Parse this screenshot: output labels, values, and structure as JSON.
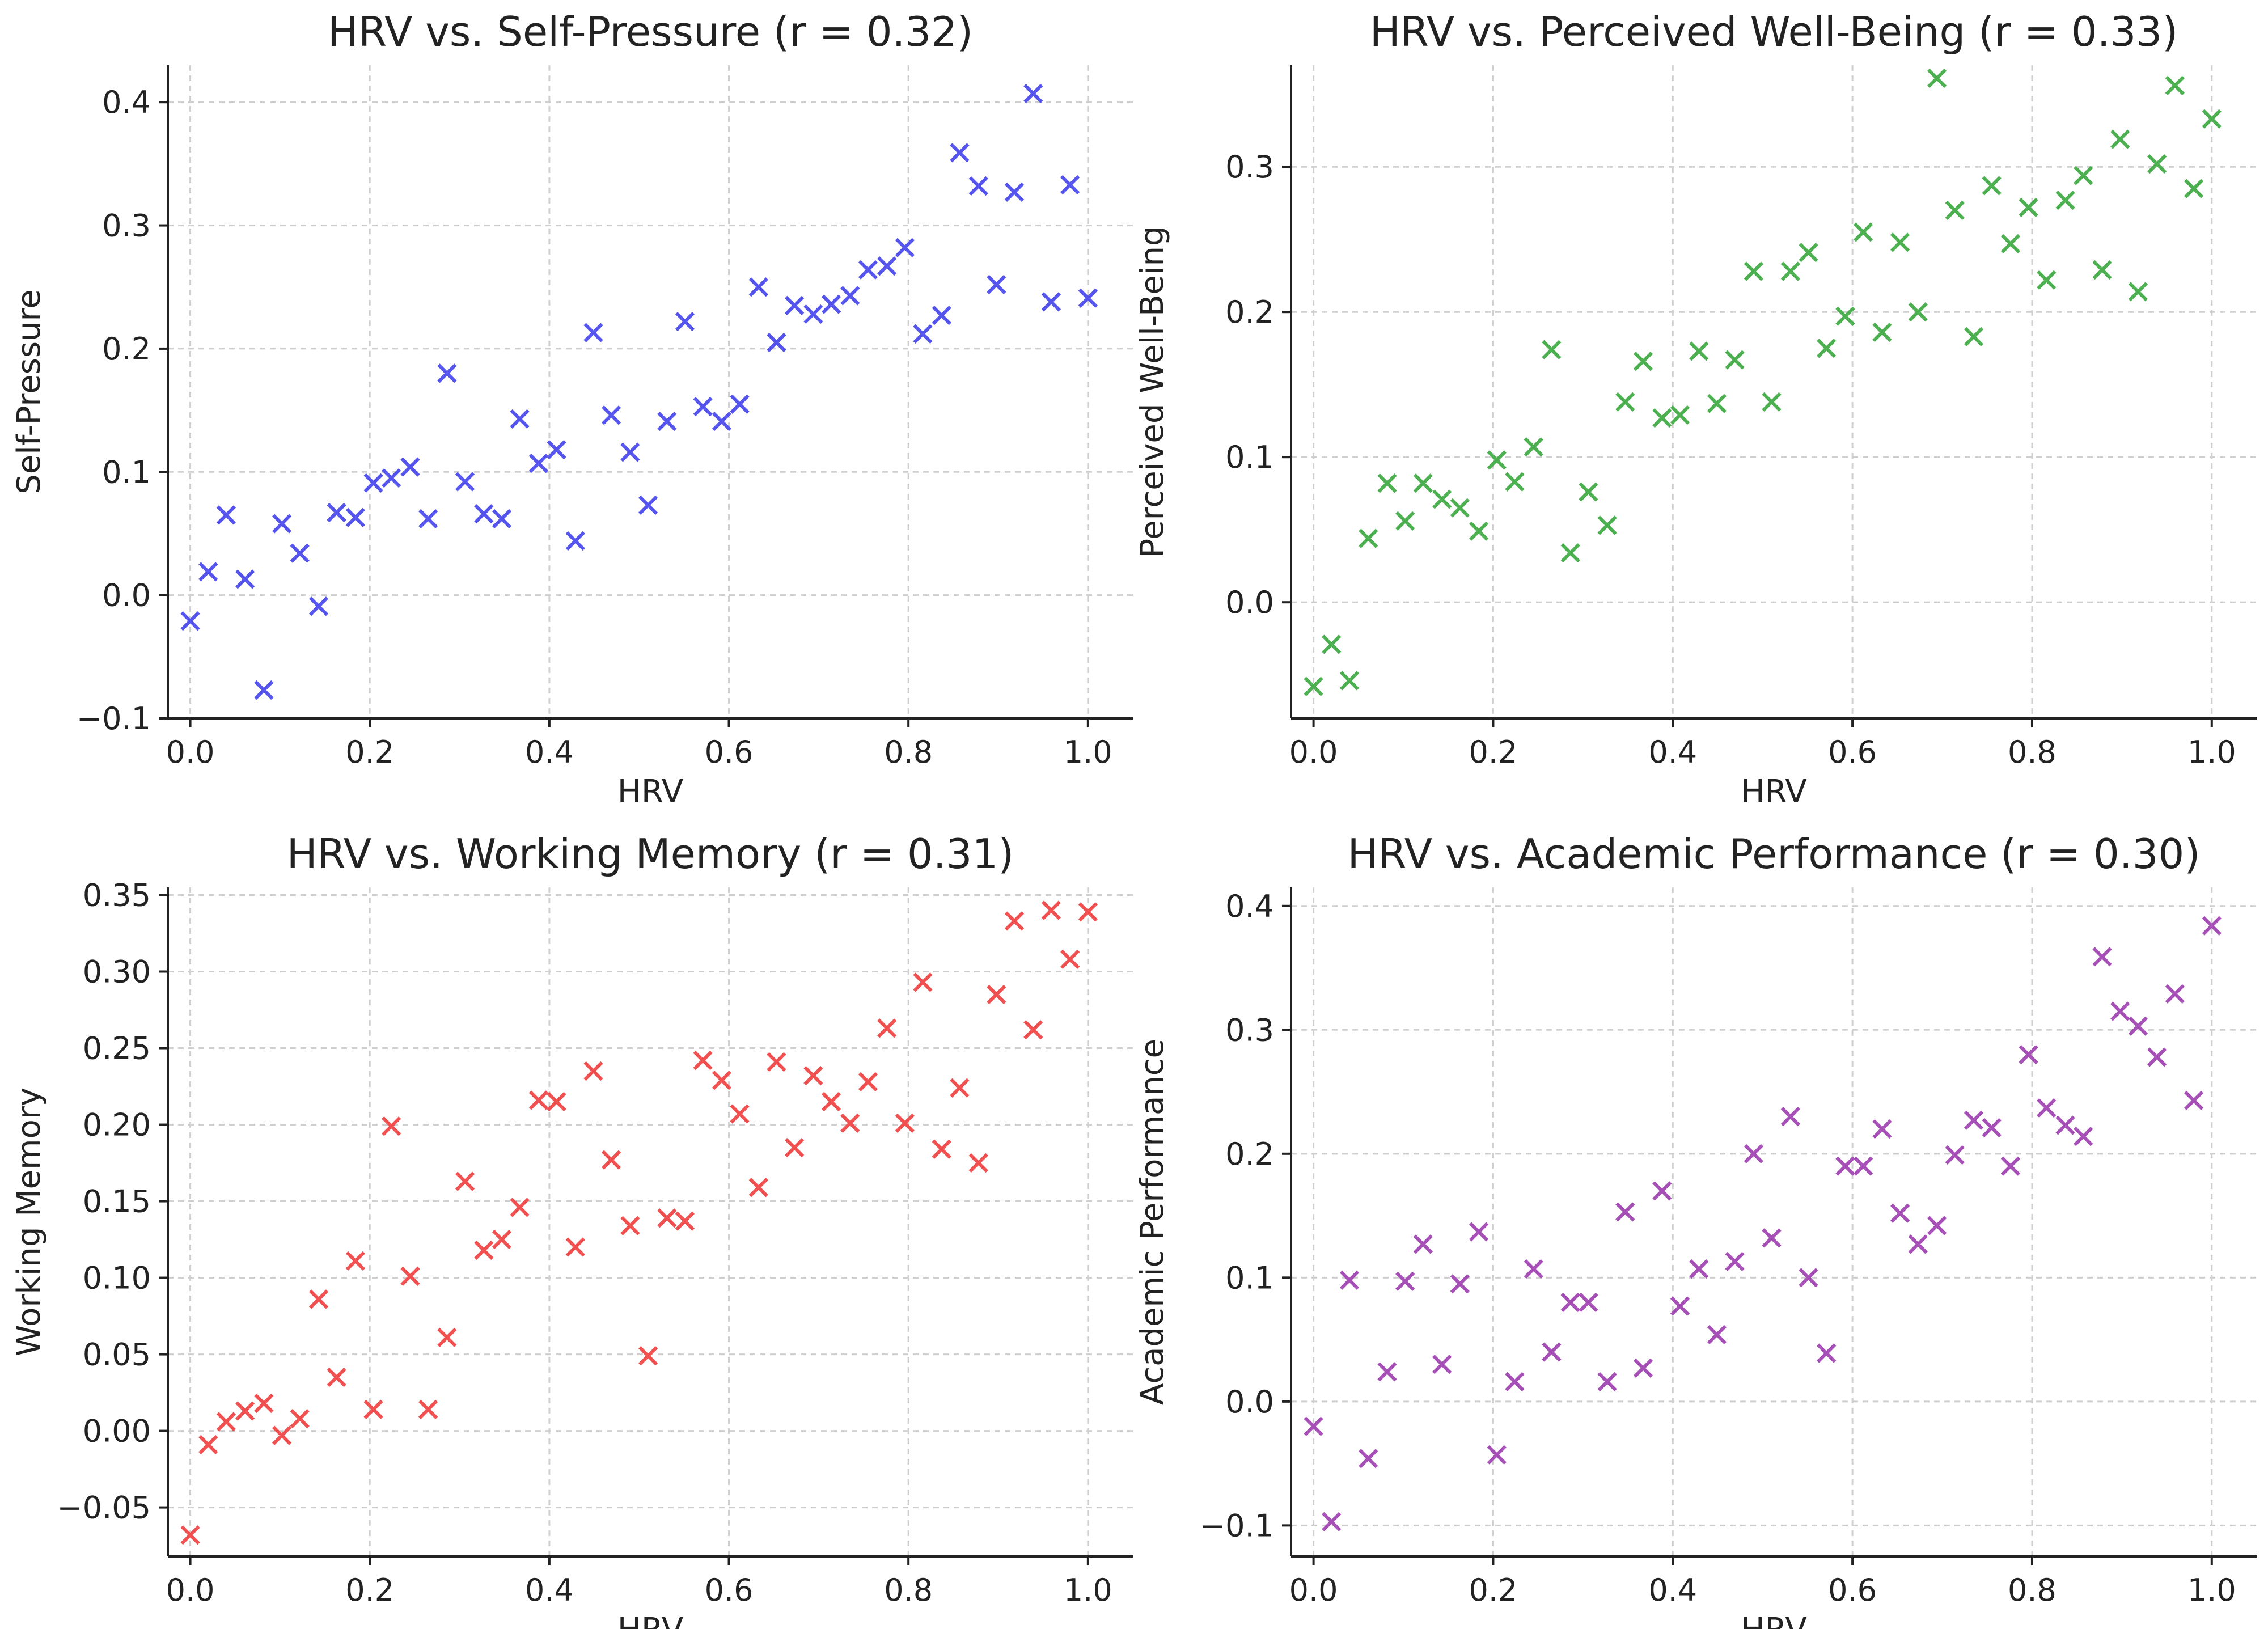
{
  "chart_data": [
    {
      "type": "scatter",
      "title": "HRV vs. Self-Pressure (r = 0.32)",
      "xlabel": "HRV",
      "ylabel": "Self-Pressure",
      "xlim": [
        -0.025,
        1.05
      ],
      "ylim": [
        -0.1,
        0.43
      ],
      "xticks": [
        0.0,
        0.2,
        0.4,
        0.6,
        0.8,
        1.0
      ],
      "xtick_labels": [
        "0.0",
        "0.2",
        "0.4",
        "0.6",
        "0.8",
        "1.0"
      ],
      "yticks": [
        -0.1,
        0.0,
        0.1,
        0.2,
        0.3,
        0.4
      ],
      "ytick_labels": [
        "−0.1",
        "0.0",
        "0.1",
        "0.2",
        "0.3",
        "0.4"
      ],
      "grid": true,
      "marker": "x",
      "color": "#5555ee",
      "x": [
        0.0,
        0.02,
        0.04,
        0.061,
        0.082,
        0.102,
        0.122,
        0.143,
        0.163,
        0.184,
        0.204,
        0.224,
        0.245,
        0.265,
        0.286,
        0.306,
        0.327,
        0.347,
        0.367,
        0.388,
        0.408,
        0.429,
        0.449,
        0.469,
        0.49,
        0.51,
        0.531,
        0.551,
        0.571,
        0.592,
        0.612,
        0.633,
        0.653,
        0.673,
        0.694,
        0.714,
        0.735,
        0.755,
        0.776,
        0.796,
        0.816,
        0.837,
        0.857,
        0.878,
        0.898,
        0.918,
        0.939,
        0.959,
        0.98,
        1.0
      ],
      "y": [
        -0.021,
        0.019,
        0.065,
        0.013,
        -0.077,
        0.058,
        0.034,
        -0.009,
        0.067,
        0.063,
        0.091,
        0.095,
        0.104,
        0.062,
        0.18,
        0.092,
        0.066,
        0.062,
        0.143,
        0.107,
        0.118,
        0.044,
        0.213,
        0.146,
        0.116,
        0.073,
        0.141,
        0.222,
        0.153,
        0.141,
        0.155,
        0.25,
        0.205,
        0.235,
        0.228,
        0.236,
        0.243,
        0.264,
        0.267,
        0.282,
        0.212,
        0.227,
        0.359,
        0.332,
        0.252,
        0.327,
        0.407,
        0.238,
        0.333,
        0.241
      ]
    },
    {
      "type": "scatter",
      "title": "HRV vs. Perceived Well-Being (r = 0.33)",
      "xlabel": "HRV",
      "ylabel": "Perceived Well-Being",
      "xlim": [
        -0.025,
        1.05
      ],
      "ylim": [
        -0.08,
        0.37
      ],
      "xticks": [
        0.0,
        0.2,
        0.4,
        0.6,
        0.8,
        1.0
      ],
      "xtick_labels": [
        "0.0",
        "0.2",
        "0.4",
        "0.6",
        "0.8",
        "1.0"
      ],
      "yticks": [
        0.0,
        0.1,
        0.2,
        0.3
      ],
      "ytick_labels": [
        "0.0",
        "0.1",
        "0.2",
        "0.3"
      ],
      "grid": true,
      "marker": "x",
      "color": "#4caf50",
      "x": [
        0.0,
        0.02,
        0.04,
        0.061,
        0.082,
        0.102,
        0.122,
        0.143,
        0.163,
        0.184,
        0.204,
        0.224,
        0.245,
        0.265,
        0.286,
        0.306,
        0.327,
        0.347,
        0.367,
        0.388,
        0.408,
        0.429,
        0.449,
        0.469,
        0.49,
        0.51,
        0.531,
        0.551,
        0.571,
        0.592,
        0.612,
        0.633,
        0.653,
        0.673,
        0.694,
        0.714,
        0.735,
        0.755,
        0.776,
        0.796,
        0.816,
        0.837,
        0.857,
        0.878,
        0.898,
        0.918,
        0.939,
        0.959,
        0.98,
        1.0
      ],
      "y": [
        -0.058,
        -0.029,
        -0.054,
        0.044,
        0.082,
        0.056,
        0.082,
        0.071,
        0.065,
        0.049,
        0.098,
        0.083,
        0.107,
        0.174,
        0.034,
        0.076,
        0.053,
        0.138,
        0.166,
        0.127,
        0.129,
        0.173,
        0.137,
        0.167,
        0.228,
        0.138,
        0.228,
        0.241,
        0.175,
        0.197,
        0.255,
        0.186,
        0.248,
        0.2,
        0.361,
        0.27,
        0.183,
        0.287,
        0.247,
        0.272,
        0.222,
        0.277,
        0.294,
        0.229,
        0.319,
        0.214,
        0.302,
        0.356,
        0.285,
        0.333
      ]
    },
    {
      "type": "scatter",
      "title": "HRV vs. Working Memory (r = 0.31)",
      "xlabel": "HRV",
      "ylabel": "Working Memory",
      "xlim": [
        -0.025,
        1.05
      ],
      "ylim": [
        -0.082,
        0.355
      ],
      "xticks": [
        0.0,
        0.2,
        0.4,
        0.6,
        0.8,
        1.0
      ],
      "xtick_labels": [
        "0.0",
        "0.2",
        "0.4",
        "0.6",
        "0.8",
        "1.0"
      ],
      "yticks": [
        -0.05,
        0.0,
        0.05,
        0.1,
        0.15,
        0.2,
        0.25,
        0.3,
        0.35
      ],
      "ytick_labels": [
        "−0.05",
        "0.00",
        "0.05",
        "0.10",
        "0.15",
        "0.20",
        "0.25",
        "0.30",
        "0.35"
      ],
      "grid": true,
      "marker": "x",
      "color": "#f05050",
      "x": [
        0.0,
        0.02,
        0.04,
        0.061,
        0.082,
        0.102,
        0.122,
        0.143,
        0.163,
        0.184,
        0.204,
        0.224,
        0.245,
        0.265,
        0.286,
        0.306,
        0.327,
        0.347,
        0.367,
        0.388,
        0.408,
        0.429,
        0.449,
        0.469,
        0.49,
        0.51,
        0.531,
        0.551,
        0.571,
        0.592,
        0.612,
        0.633,
        0.653,
        0.673,
        0.694,
        0.714,
        0.735,
        0.755,
        0.776,
        0.796,
        0.816,
        0.837,
        0.857,
        0.878,
        0.898,
        0.918,
        0.939,
        0.959,
        0.98,
        1.0
      ],
      "y": [
        -0.068,
        -0.009,
        0.006,
        0.013,
        0.018,
        -0.003,
        0.008,
        0.086,
        0.035,
        0.111,
        0.014,
        0.199,
        0.101,
        0.014,
        0.061,
        0.163,
        0.118,
        0.125,
        0.146,
        0.216,
        0.215,
        0.12,
        0.235,
        0.177,
        0.134,
        0.049,
        0.139,
        0.137,
        0.242,
        0.229,
        0.207,
        0.159,
        0.241,
        0.185,
        0.232,
        0.215,
        0.201,
        0.228,
        0.263,
        0.201,
        0.293,
        0.184,
        0.224,
        0.175,
        0.285,
        0.333,
        0.262,
        0.34,
        0.308,
        0.339
      ]
    },
    {
      "type": "scatter",
      "title": "HRV vs. Academic Performance (r = 0.30)",
      "xlabel": "HRV",
      "ylabel": "Academic Performance",
      "xlim": [
        -0.025,
        1.05
      ],
      "ylim": [
        -0.125,
        0.415
      ],
      "xticks": [
        0.0,
        0.2,
        0.4,
        0.6,
        0.8,
        1.0
      ],
      "xtick_labels": [
        "0.0",
        "0.2",
        "0.4",
        "0.6",
        "0.8",
        "1.0"
      ],
      "yticks": [
        -0.1,
        0.0,
        0.1,
        0.2,
        0.3,
        0.4
      ],
      "ytick_labels": [
        "−0.1",
        "0.0",
        "0.1",
        "0.2",
        "0.3",
        "0.4"
      ],
      "grid": true,
      "marker": "x",
      "color": "#a64fb6",
      "x": [
        0.0,
        0.02,
        0.04,
        0.061,
        0.082,
        0.102,
        0.122,
        0.143,
        0.163,
        0.184,
        0.204,
        0.224,
        0.245,
        0.265,
        0.286,
        0.306,
        0.327,
        0.347,
        0.367,
        0.388,
        0.408,
        0.429,
        0.449,
        0.469,
        0.49,
        0.51,
        0.531,
        0.551,
        0.571,
        0.592,
        0.612,
        0.633,
        0.653,
        0.673,
        0.694,
        0.714,
        0.735,
        0.755,
        0.776,
        0.796,
        0.816,
        0.837,
        0.857,
        0.878,
        0.898,
        0.918,
        0.939,
        0.959,
        0.98,
        1.0
      ],
      "y": [
        -0.02,
        -0.097,
        0.098,
        -0.046,
        0.024,
        0.097,
        0.127,
        0.03,
        0.095,
        0.137,
        -0.043,
        0.016,
        0.107,
        0.04,
        0.08,
        0.08,
        0.016,
        0.153,
        0.027,
        0.17,
        0.077,
        0.107,
        0.054,
        0.113,
        0.2,
        0.132,
        0.23,
        0.1,
        0.039,
        0.19,
        0.19,
        0.22,
        0.152,
        0.127,
        0.142,
        0.199,
        0.227,
        0.221,
        0.19,
        0.28,
        0.237,
        0.223,
        0.214,
        0.359,
        0.315,
        0.303,
        0.278,
        0.329,
        0.243,
        0.384
      ]
    }
  ]
}
